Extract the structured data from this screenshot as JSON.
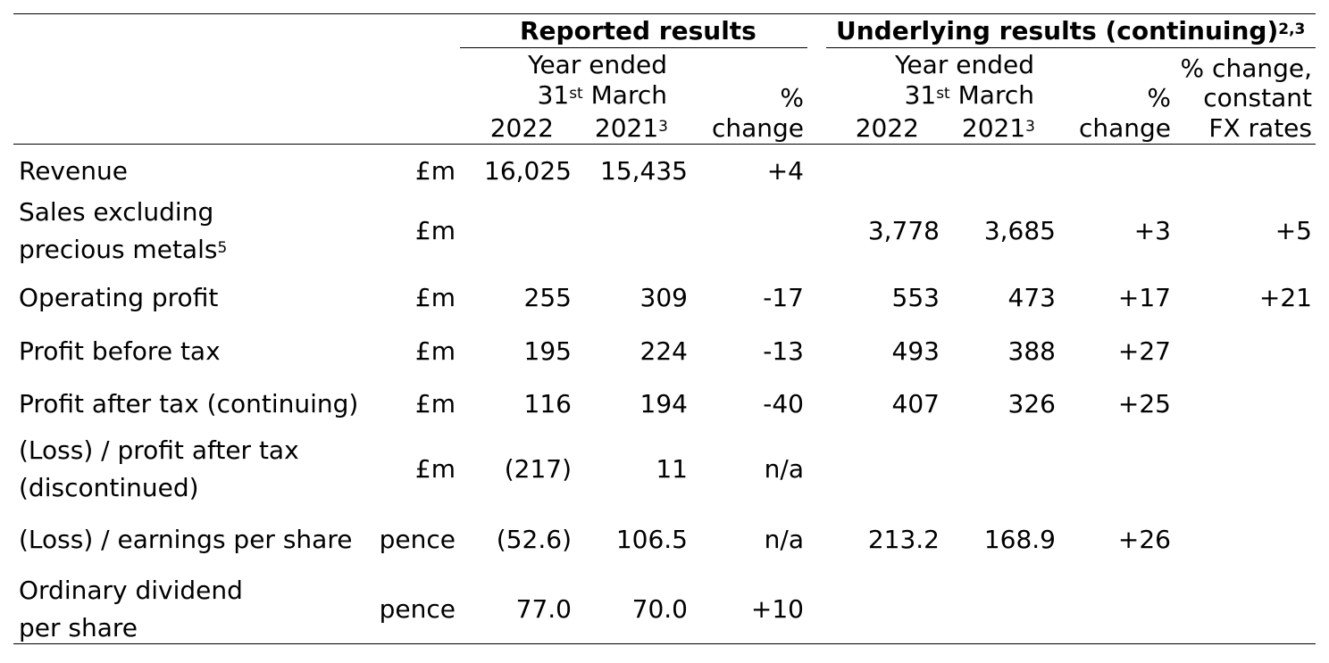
{
  "headers": {
    "reported": "Reported results",
    "underlying": "Underlying results (continuing)",
    "underlying_sup": "2,3",
    "year_ended": "Year ended",
    "date_31": "31",
    "date_st": "st",
    "date_march": "March",
    "y2022": "2022",
    "y2021": "2021",
    "y2021_sup": "3",
    "pct": "%",
    "change": "change",
    "pct_change_l1": "% change,",
    "pct_change_l2": "constant",
    "pct_change_l3": "FX rates"
  },
  "rows": [
    {
      "label": "Revenue",
      "unit": "£m",
      "r2022": "16,025",
      "r2021": "15,435",
      "rchg": "+4",
      "u2022": "",
      "u2021": "",
      "uchg": "",
      "ufx": ""
    },
    {
      "label1": "Sales excluding",
      "label2": "precious metals",
      "label2_sup": "5",
      "unit": "£m",
      "r2022": "",
      "r2021": "",
      "rchg": "",
      "u2022": "3,778",
      "u2021": "3,685",
      "uchg": "+3",
      "ufx": "+5"
    },
    {
      "label": "Operating profit",
      "unit": "£m",
      "r2022": "255",
      "r2021": "309",
      "rchg": "-17",
      "u2022": "553",
      "u2021": "473",
      "uchg": "+17",
      "ufx": "+21"
    },
    {
      "label": "Profit before tax",
      "unit": "£m",
      "r2022": "195",
      "r2021": "224",
      "rchg": "-13",
      "u2022": "493",
      "u2021": "388",
      "uchg": "+27",
      "ufx": ""
    },
    {
      "label": "Profit after tax (continuing)",
      "unit": "£m",
      "r2022": "116",
      "r2021": "194",
      "rchg": "-40",
      "u2022": "407",
      "u2021": "326",
      "uchg": "+25",
      "ufx": ""
    },
    {
      "label1": "(Loss) / profit after tax",
      "label2": "(discontinued)",
      "unit": "£m",
      "r2022": "(217)",
      "r2021": "11",
      "rchg": "n/a",
      "u2022": "",
      "u2021": "",
      "uchg": "",
      "ufx": ""
    },
    {
      "label": "(Loss) / earnings per share",
      "unit": "pence",
      "r2022": "(52.6)",
      "r2021": "106.5",
      "rchg": "n/a",
      "u2022": "213.2",
      "u2021": "168.9",
      "uchg": "+26",
      "ufx": ""
    },
    {
      "label1": "Ordinary dividend",
      "label2": "per share",
      "unit": "pence",
      "r2022": "77.0",
      "r2021": "70.0",
      "rchg": "+10",
      "u2022": "",
      "u2021": "",
      "uchg": "",
      "ufx": ""
    }
  ]
}
